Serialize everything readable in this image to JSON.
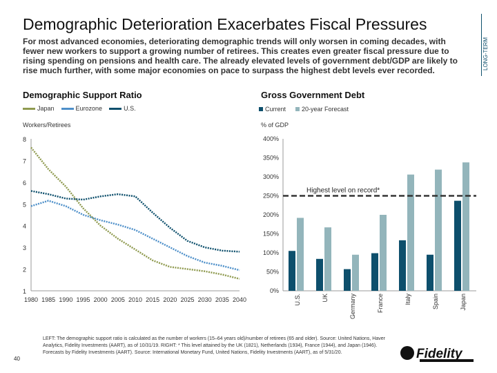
{
  "title": "Demographic Deterioration Exacerbates Fiscal Pressures",
  "subtitle": "For most advanced economies, deteriorating demographic trends will only worsen in coming decades, with fewer new workers to support a growing number of retirees. This creates even greater fiscal pressure due to rising spending on pensions and health care. The already elevated levels of government debt/GDP are likely to rise much further, with some major economies on pace to surpass the highest debt levels ever recorded.",
  "side_label": "LONG-TERM",
  "footnote": "LEFT: The demographic support ratio is calculated as the number of workers (15–64 years old)/number of retirees (65 and older). Source: United Nations, Haver Analytics, Fidelity Investments (AART), as of 10/31/19. RIGHT: * This level attained by the UK (1821), Netherlands (1934), France (1944), and Japan (1946). Forecasts by Fidelity Investments (AART). Source: International Monetary Fund, United Nations, Fidelity Investments (AART), as of 5/31/20.",
  "page_number": "40",
  "logo": "Fidelity INVESTMENTS",
  "chart_data": [
    {
      "type": "line",
      "title": "Demographic Support Ratio",
      "ylabel": "Workers/Retirees",
      "ylim": [
        1,
        8
      ],
      "yticks": [
        "1",
        "2",
        "3",
        "4",
        "5",
        "6",
        "7",
        "8"
      ],
      "x": [
        1980,
        1985,
        1990,
        1995,
        2000,
        2005,
        2010,
        2015,
        2020,
        2025,
        2030,
        2035,
        2040
      ],
      "xticks": [
        "1980",
        "1985",
        "1990",
        "1995",
        "2000",
        "2005",
        "2010",
        "2015",
        "2020",
        "2025",
        "2030",
        "2035",
        "2040"
      ],
      "series": [
        {
          "name": "Japan",
          "color": "#8f9a4f",
          "style": "dotted",
          "values": [
            7.6,
            6.6,
            5.8,
            4.8,
            4.0,
            3.4,
            2.9,
            2.4,
            2.1,
            2.0,
            1.9,
            1.75,
            1.55
          ]
        },
        {
          "name": "Eurozone",
          "color": "#4d8fc9",
          "style": "dotted",
          "values": [
            4.9,
            5.15,
            4.9,
            4.5,
            4.25,
            4.05,
            3.8,
            3.4,
            3.0,
            2.6,
            2.3,
            2.15,
            1.95
          ]
        },
        {
          "name": "U.S.",
          "color": "#0d4f6c",
          "style": "dotted",
          "values": [
            5.6,
            5.45,
            5.25,
            5.2,
            5.35,
            5.45,
            5.35,
            4.6,
            3.9,
            3.3,
            3.0,
            2.85,
            2.8
          ]
        }
      ]
    },
    {
      "type": "bar",
      "title": "Gross Government Debt",
      "ylabel": "% of GDP",
      "ylim": [
        0,
        400
      ],
      "yticks": [
        "0%",
        "50%",
        "100%",
        "150%",
        "200%",
        "250%",
        "300%",
        "350%",
        "400%"
      ],
      "categories": [
        "U.S.",
        "UK",
        "Germany",
        "France",
        "Italy",
        "Spain",
        "Japan"
      ],
      "series": [
        {
          "name": "Current",
          "color": "#0d4f6c",
          "values": [
            105,
            84,
            57,
            99,
            133,
            95,
            237
          ]
        },
        {
          "name": "20-year Forecast",
          "color": "#93b5bb",
          "values": [
            192,
            167,
            95,
            200,
            306,
            319,
            338
          ]
        }
      ],
      "reference_line": {
        "value": 250,
        "label": "Highest level on record*"
      }
    }
  ]
}
